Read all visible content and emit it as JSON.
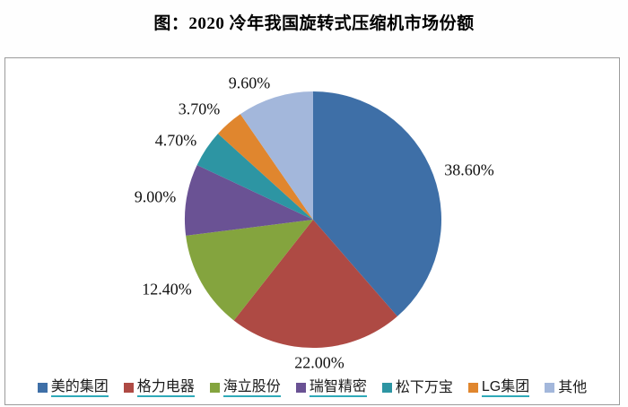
{
  "figure": {
    "title": "图：2020 冷年我国旋转式压缩机市场份额"
  },
  "chart_data": {
    "type": "pie",
    "title": "图：2020 冷年我国旋转式压缩机市场份额",
    "legend_position": "bottom",
    "start_angle_deg": 0,
    "direction": "clockwise",
    "total": 100,
    "series": [
      {
        "name": "美的集团",
        "value": 38.6,
        "label": "38.60%",
        "color": "#3e6fa7",
        "underlined": true
      },
      {
        "name": "格力电器",
        "value": 22.0,
        "label": "22.00%",
        "color": "#ae4a44",
        "underlined": true
      },
      {
        "name": "海立股份",
        "value": 12.4,
        "label": "12.40%",
        "color": "#84a43e",
        "underlined": true
      },
      {
        "name": "瑞智精密",
        "value": 9.0,
        "label": "9.00%",
        "color": "#6a5294",
        "underlined": true
      },
      {
        "name": "松下万宝",
        "value": 4.7,
        "label": "4.70%",
        "color": "#2d95a3",
        "underlined": false
      },
      {
        "name": "LG集团",
        "value": 3.7,
        "label": "3.70%",
        "color": "#e0862e",
        "underlined": true
      },
      {
        "name": "其他",
        "value": 9.6,
        "label": "9.60%",
        "color": "#a3b7db",
        "underlined": false
      }
    ]
  }
}
